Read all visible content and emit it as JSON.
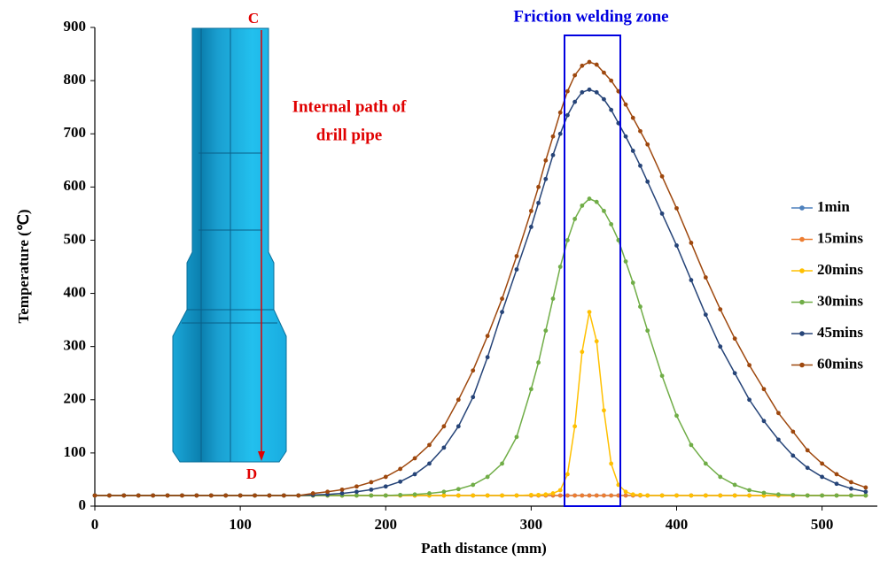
{
  "chart_data": {
    "type": "line",
    "x_label": "Path distance (mm)",
    "y_label": "Temperature (℃)",
    "annotations": {
      "zone": "Friction welding zone",
      "path_top": "C",
      "path_bottom": "D",
      "path_label_1": "Internal path of",
      "path_label_2": "drill pipe"
    },
    "x": [
      0,
      10,
      20,
      30,
      40,
      50,
      60,
      70,
      80,
      90,
      100,
      110,
      120,
      130,
      140,
      150,
      160,
      170,
      180,
      190,
      200,
      210,
      220,
      230,
      240,
      250,
      260,
      270,
      280,
      290,
      300,
      305,
      310,
      315,
      320,
      325,
      330,
      335,
      340,
      345,
      350,
      355,
      360,
      365,
      370,
      375,
      380,
      390,
      400,
      410,
      420,
      430,
      440,
      450,
      460,
      470,
      480,
      490,
      500,
      510,
      520,
      530
    ],
    "series": [
      {
        "name": "1min",
        "color": "#4e81bd",
        "values": [
          20,
          20,
          20,
          20,
          20,
          20,
          20,
          20,
          20,
          20,
          20,
          20,
          20,
          20,
          20,
          20,
          20,
          20,
          20,
          20,
          20,
          20,
          20,
          20,
          20,
          20,
          20,
          20,
          20,
          20,
          20,
          20,
          20,
          20,
          20,
          20,
          20,
          20,
          20,
          20,
          20,
          20,
          20,
          20,
          20,
          20,
          20,
          20,
          20,
          20,
          20,
          20,
          20,
          20,
          20,
          20,
          20,
          20,
          20,
          20,
          20,
          20
        ]
      },
      {
        "name": "15mins",
        "color": "#ed7d31",
        "values": [
          20,
          20,
          20,
          20,
          20,
          20,
          20,
          20,
          20,
          20,
          20,
          20,
          20,
          20,
          20,
          20,
          20,
          20,
          20,
          20,
          20,
          20,
          20,
          20,
          20,
          20,
          20,
          20,
          20,
          20,
          20,
          20,
          20,
          20,
          20,
          20,
          20,
          20,
          20,
          20,
          20,
          20,
          20,
          20,
          20,
          20,
          20,
          20,
          20,
          20,
          20,
          20,
          20,
          20,
          20,
          20,
          20,
          20,
          20,
          20,
          20,
          20
        ]
      },
      {
        "name": "20mins",
        "color": "#ffc000",
        "values": [
          20,
          20,
          20,
          20,
          20,
          20,
          20,
          20,
          20,
          20,
          20,
          20,
          20,
          20,
          20,
          20,
          20,
          20,
          20,
          20,
          20,
          20,
          20,
          20,
          20,
          20,
          20,
          20,
          20,
          20,
          21,
          21,
          22,
          24,
          30,
          60,
          150,
          290,
          365,
          310,
          180,
          80,
          40,
          27,
          22,
          21,
          20,
          20,
          20,
          20,
          20,
          20,
          20,
          20,
          20,
          20,
          20,
          20,
          20,
          20,
          20,
          20
        ]
      },
      {
        "name": "30mins",
        "color": "#70ad47",
        "values": [
          20,
          20,
          20,
          20,
          20,
          20,
          20,
          20,
          20,
          20,
          20,
          20,
          20,
          20,
          20,
          20,
          20,
          20,
          20,
          20,
          20,
          21,
          22,
          24,
          27,
          32,
          40,
          55,
          80,
          130,
          220,
          270,
          330,
          390,
          450,
          500,
          540,
          565,
          578,
          572,
          555,
          530,
          500,
          460,
          420,
          375,
          330,
          245,
          170,
          115,
          80,
          55,
          40,
          30,
          25,
          22,
          21,
          20,
          20,
          20,
          20,
          20
        ]
      },
      {
        "name": "45mins",
        "color": "#264478",
        "values": [
          20,
          20,
          20,
          20,
          20,
          20,
          20,
          20,
          20,
          20,
          20,
          20,
          20,
          20,
          20,
          21,
          22,
          24,
          27,
          31,
          37,
          46,
          60,
          80,
          110,
          150,
          205,
          280,
          365,
          445,
          525,
          570,
          615,
          660,
          700,
          735,
          760,
          778,
          783,
          778,
          765,
          745,
          720,
          695,
          668,
          640,
          610,
          550,
          490,
          425,
          360,
          300,
          250,
          200,
          160,
          125,
          95,
          72,
          55,
          42,
          33,
          27
        ]
      },
      {
        "name": "60mins",
        "color": "#9e480e",
        "values": [
          20,
          20,
          20,
          20,
          20,
          20,
          20,
          20,
          20,
          20,
          20,
          20,
          20,
          20,
          20,
          24,
          27,
          31,
          37,
          45,
          55,
          70,
          90,
          115,
          150,
          200,
          255,
          320,
          390,
          470,
          555,
          600,
          650,
          695,
          740,
          780,
          810,
          828,
          835,
          830,
          815,
          800,
          780,
          755,
          730,
          705,
          680,
          620,
          560,
          495,
          430,
          370,
          315,
          265,
          220,
          175,
          140,
          105,
          80,
          60,
          45,
          35
        ]
      }
    ],
    "xlim": [
      0,
      538
    ],
    "xticks": [
      0,
      100,
      200,
      300,
      400,
      500
    ],
    "ylim": [
      0,
      900
    ],
    "yticks": [
      0,
      100,
      200,
      300,
      400,
      500,
      600,
      700,
      800,
      900
    ]
  }
}
